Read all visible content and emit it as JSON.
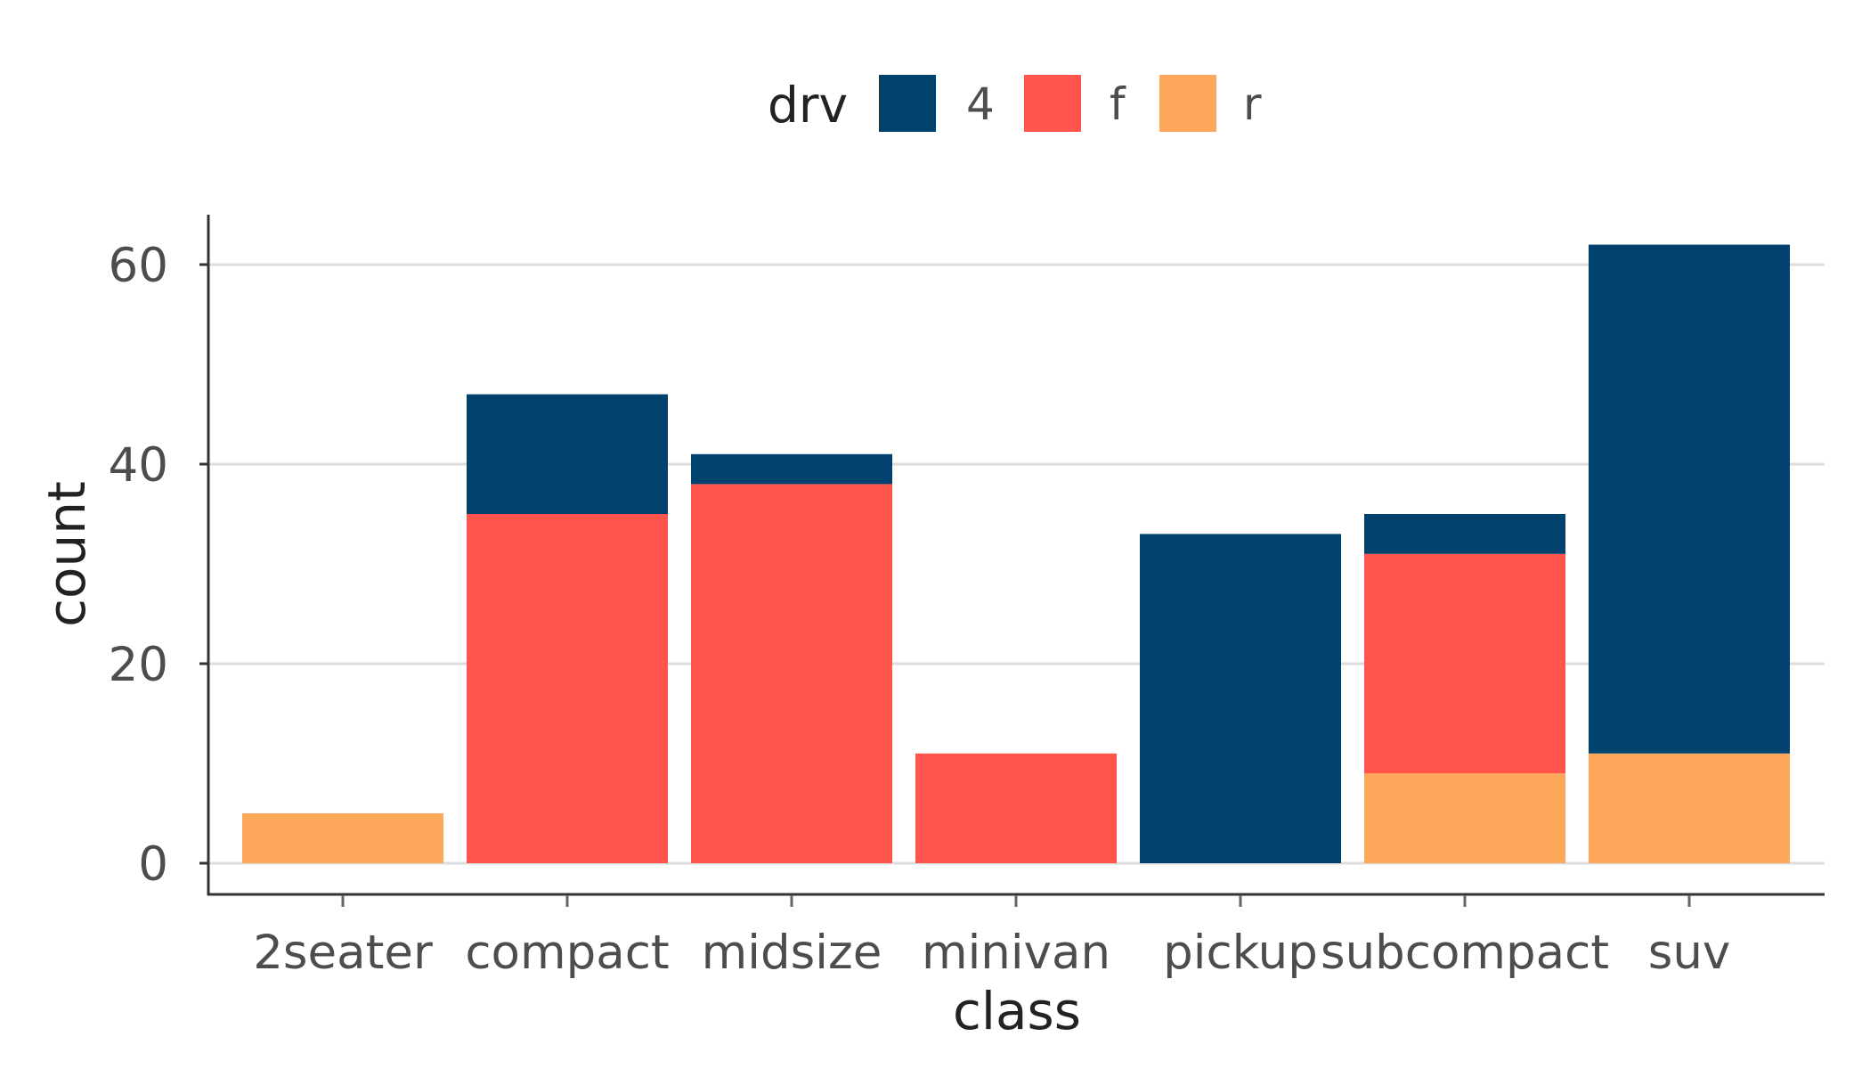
{
  "chart_data": {
    "type": "bar",
    "stacked": true,
    "title": "",
    "xlabel": "class",
    "ylabel": "count",
    "categories": [
      "2seater",
      "compact",
      "midsize",
      "minivan",
      "pickup",
      "subcompact",
      "suv"
    ],
    "series": [
      {
        "name": "4",
        "color": "#00416D",
        "values": [
          0,
          12,
          3,
          0,
          33,
          4,
          51
        ]
      },
      {
        "name": "f",
        "color": "#FF554D",
        "values": [
          0,
          35,
          38,
          11,
          0,
          22,
          0
        ]
      },
      {
        "name": "r",
        "color": "#FFA75B",
        "values": [
          5,
          0,
          0,
          0,
          0,
          9,
          11
        ]
      }
    ],
    "stack_order_bottom_to_top": [
      "r",
      "f",
      "4"
    ],
    "ylim": [
      -3.1,
      65
    ],
    "yticks": [
      0,
      20,
      40,
      60
    ],
    "grid": {
      "horizontal": true,
      "vertical": false,
      "color": "#dddddd"
    },
    "legend": {
      "title": "drv",
      "position": "top"
    }
  }
}
